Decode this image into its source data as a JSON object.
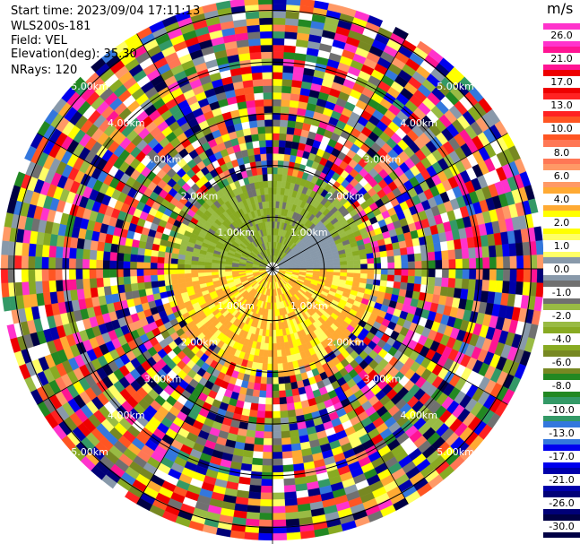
{
  "info": {
    "start_time": "Start time: 2023/09/04 17:11:13",
    "instrument": "WLS200s-181",
    "field": "Field: VEL",
    "elevation": "Elevation(deg): 35.30",
    "nrays": "NRays: 120"
  },
  "colorbar": {
    "unit": "m/s",
    "labels": [
      "26.0",
      "21.0",
      "17.0",
      "13.0",
      "10.0",
      "8.0",
      "6.0",
      "4.0",
      "2.0",
      "1.0",
      "0.0",
      "-1.0",
      "-2.0",
      "-4.0",
      "-6.0",
      "-8.0",
      "-10.0",
      "-13.0",
      "-17.0",
      "-21.0",
      "-26.0",
      "-30.0"
    ],
    "colors": [
      "#ff33cc",
      "#ff1493",
      "#ee0000",
      "#ff2222",
      "#ff5522",
      "#ff7755",
      "#ff9966",
      "#ffaa33",
      "#ffff00",
      "#ffff66",
      "#8899aa",
      "#707070",
      "#99bb44",
      "#88aa22",
      "#778822",
      "#228822",
      "#339966",
      "#3377dd",
      "#0000ee",
      "#0000aa",
      "#000077",
      "#000044"
    ]
  },
  "chart_data": {
    "type": "heatmap",
    "subtype": "ppi-polar",
    "field": "VEL",
    "unit": "m/s",
    "nrays": 120,
    "elevation_deg": 35.3,
    "range_rings": [
      {
        "range_km": 1.0,
        "label": "1.00km"
      },
      {
        "range_km": 2.0,
        "label": "2.00km"
      },
      {
        "range_km": 3.0,
        "label": "3.00km"
      },
      {
        "range_km": 4.0,
        "label": "4.00km"
      },
      {
        "range_km": 5.0,
        "label": "5.00km"
      }
    ],
    "max_range_km": 5.25,
    "vmin": -30.0,
    "vmax": 26.0,
    "near_field_pattern": {
      "north_half_velocity": -4.0,
      "south_half_velocity": 2.0,
      "valid_to_km": 1.9
    },
    "far_field": "noise"
  }
}
